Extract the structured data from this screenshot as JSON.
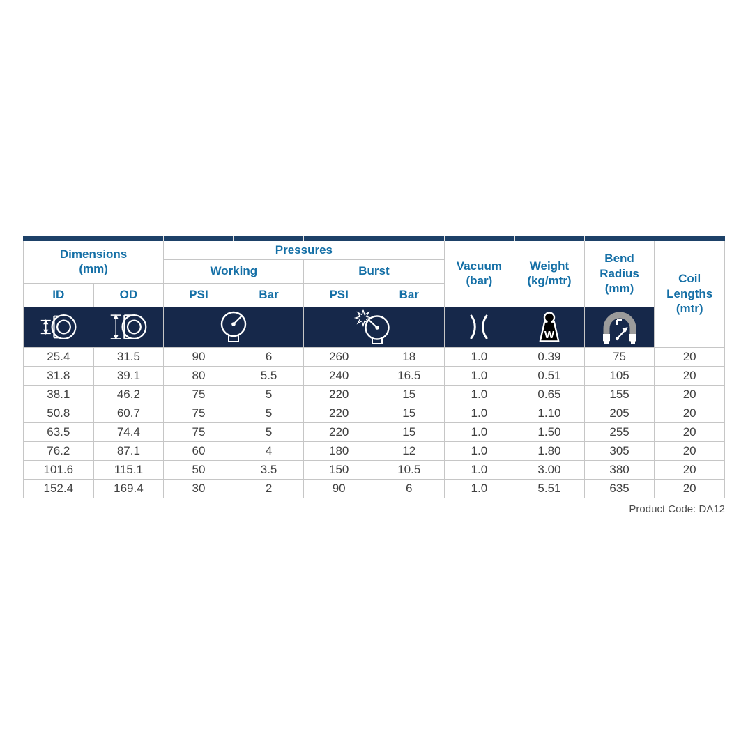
{
  "colors": {
    "top_bar_navy": "#1d4168",
    "icon_band_navy": "#16284a",
    "header_blue": "#146fa6",
    "data_text_gray": "#404040",
    "border_gray": "#c6c6c6",
    "bend_tube_gray": "#9b9b9b"
  },
  "table": {
    "header": {
      "dimensions": "Dimensions\n(mm)",
      "pressures": "Pressures",
      "working": "Working",
      "burst": "Burst",
      "vacuum": "Vacuum\n(bar)",
      "weight": "Weight\n(kg/mtr)",
      "bend_radius": "Bend\nRadius\n(mm)",
      "coil_lengths": "Coil\nLengths\n(mtr)",
      "sub": {
        "id": "ID",
        "od": "OD",
        "working_psi": "PSI",
        "working_bar": "Bar",
        "burst_psi": "PSI",
        "burst_bar": "Bar"
      }
    },
    "icons": {
      "id": "inner-diameter-icon",
      "od": "outer-diameter-icon",
      "working": "pressure-gauge-icon",
      "burst": "burst-gauge-icon",
      "vacuum": "vacuum-icon",
      "weight": "weight-icon",
      "weight_letter": "W",
      "bend_radius": "bend-radius-icon"
    },
    "rows": [
      [
        "25.4",
        "31.5",
        "90",
        "6",
        "260",
        "18",
        "1.0",
        "0.39",
        "75",
        "20"
      ],
      [
        "31.8",
        "39.1",
        "80",
        "5.5",
        "240",
        "16.5",
        "1.0",
        "0.51",
        "105",
        "20"
      ],
      [
        "38.1",
        "46.2",
        "75",
        "5",
        "220",
        "15",
        "1.0",
        "0.65",
        "155",
        "20"
      ],
      [
        "50.8",
        "60.7",
        "75",
        "5",
        "220",
        "15",
        "1.0",
        "1.10",
        "205",
        "20"
      ],
      [
        "63.5",
        "74.4",
        "75",
        "5",
        "220",
        "15",
        "1.0",
        "1.50",
        "255",
        "20"
      ],
      [
        "76.2",
        "87.1",
        "60",
        "4",
        "180",
        "12",
        "1.0",
        "1.80",
        "305",
        "20"
      ],
      [
        "101.6",
        "115.1",
        "50",
        "3.5",
        "150",
        "10.5",
        "1.0",
        "3.00",
        "380",
        "20"
      ],
      [
        "152.4",
        "169.4",
        "30",
        "2",
        "90",
        "6",
        "1.0",
        "5.51",
        "635",
        "20"
      ]
    ]
  },
  "footer": {
    "product_code": "Product Code: DA12"
  }
}
